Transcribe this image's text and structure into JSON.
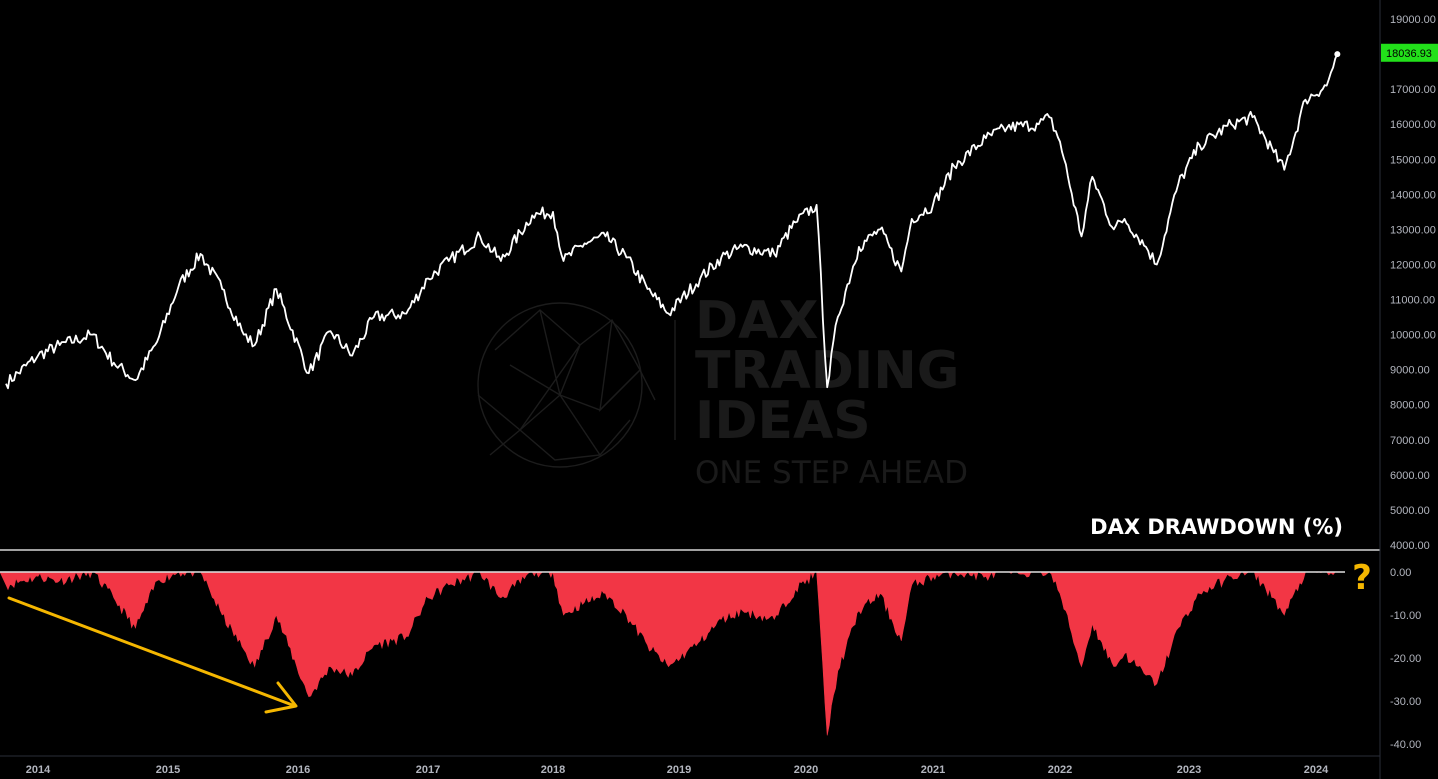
{
  "watermark": {
    "line1": "DAX",
    "line2": "TRADING",
    "line3": "IDEAS",
    "tagline": "ONE STEP AHEAD"
  },
  "drawdown_title": "DAX DRAWDOWN (%)",
  "question_mark": "?",
  "last_price_label": "18036.93",
  "colors": {
    "background": "#000000",
    "price_line": "#ffffff",
    "drawdown_fill": "#f23645",
    "last_price_tag": "#22e01a",
    "annotation": "#f5b700",
    "axis_text": "#b2b5be",
    "pane_separator": "#ffffff"
  },
  "chart_data": [
    {
      "type": "line",
      "name": "DAX",
      "ylim": [
        4000,
        19000
      ],
      "y_ticks": [
        "19000.00",
        "18000.00",
        "17000.00",
        "16000.00",
        "15000.00",
        "14000.00",
        "13000.00",
        "12000.00",
        "11000.00",
        "10000.00",
        "9000.00",
        "8000.00",
        "7000.00",
        "6000.00",
        "5000.00",
        "4000.00"
      ],
      "x_ticks": [
        "2014",
        "2015",
        "2016",
        "2017",
        "2018",
        "2019",
        "2020",
        "2021",
        "2022",
        "2023",
        "2024"
      ],
      "x": [
        "2013-10",
        "2014-01",
        "2014-03",
        "2014-06",
        "2014-08",
        "2014-10",
        "2014-12",
        "2015-02",
        "2015-04",
        "2015-06",
        "2015-08",
        "2015-09",
        "2015-11",
        "2016-02",
        "2016-04",
        "2016-06",
        "2016-08",
        "2016-11",
        "2017-01",
        "2017-03",
        "2017-06",
        "2017-08",
        "2017-11",
        "2018-01",
        "2018-02",
        "2018-04",
        "2018-06",
        "2018-08",
        "2018-10",
        "2018-12",
        "2019-03",
        "2019-05",
        "2019-07",
        "2019-10",
        "2019-12",
        "2020-02",
        "2020-03",
        "2020-04",
        "2020-06",
        "2020-08",
        "2020-10",
        "2020-11",
        "2021-01",
        "2021-03",
        "2021-06",
        "2021-08",
        "2021-11",
        "2021-12",
        "2022-01",
        "2022-03",
        "2022-04",
        "2022-06",
        "2022-07",
        "2022-09",
        "2022-10",
        "2022-12",
        "2023-02",
        "2023-05",
        "2023-07",
        "2023-09",
        "2023-10",
        "2023-12",
        "2024-02",
        "2024-03"
      ],
      "values": [
        8600,
        9400,
        9700,
        10000,
        9200,
        8700,
        9800,
        11400,
        12300,
        11300,
        10000,
        9700,
        11300,
        8900,
        10100,
        9400,
        10500,
        10600,
        11600,
        12100,
        12800,
        12100,
        13400,
        13500,
        12100,
        12600,
        12800,
        12200,
        11300,
        10600,
        11600,
        12200,
        12500,
        12300,
        13200,
        13700,
        8500,
        10500,
        12500,
        13000,
        11800,
        13300,
        13700,
        14800,
        15600,
        15900,
        16000,
        16200,
        15500,
        12800,
        14500,
        13000,
        13300,
        12500,
        12000,
        14300,
        15400,
        16000,
        16200,
        15200,
        14700,
        16700,
        17100,
        18000
      ]
    },
    {
      "type": "area",
      "name": "DAX DRAWDOWN (%)",
      "ylim": [
        -42,
        3
      ],
      "y_ticks": [
        "0.00",
        "-10.00",
        "-20.00",
        "-30.00",
        "-40.00"
      ],
      "x": [
        "2013-10",
        "2014-01",
        "2014-03",
        "2014-06",
        "2014-08",
        "2014-10",
        "2014-12",
        "2015-02",
        "2015-04",
        "2015-06",
        "2015-08",
        "2015-09",
        "2015-11",
        "2016-02",
        "2016-04",
        "2016-06",
        "2016-08",
        "2016-11",
        "2017-01",
        "2017-03",
        "2017-06",
        "2017-08",
        "2017-11",
        "2018-01",
        "2018-02",
        "2018-04",
        "2018-06",
        "2018-08",
        "2018-10",
        "2018-12",
        "2019-03",
        "2019-05",
        "2019-07",
        "2019-10",
        "2019-12",
        "2020-02",
        "2020-03",
        "2020-04",
        "2020-06",
        "2020-08",
        "2020-10",
        "2020-11",
        "2021-01",
        "2021-03",
        "2021-06",
        "2021-08",
        "2021-11",
        "2021-12",
        "2022-01",
        "2022-03",
        "2022-04",
        "2022-06",
        "2022-07",
        "2022-09",
        "2022-10",
        "2022-12",
        "2023-02",
        "2023-05",
        "2023-07",
        "2023-09",
        "2023-10",
        "2023-12",
        "2024-02",
        "2024-03"
      ],
      "values": [
        -3,
        -1,
        -2,
        0,
        -6,
        -13,
        -2,
        0,
        0,
        -10,
        -18,
        -22,
        -10,
        -29,
        -22,
        -24,
        -17,
        -15,
        -6,
        -3,
        0,
        -6,
        0,
        0,
        -10,
        -7,
        -5,
        -10,
        -17,
        -22,
        -16,
        -11,
        -9,
        -11,
        -4,
        0,
        -38,
        -23,
        -9,
        -5,
        -16,
        -3,
        -1,
        0,
        -1,
        0,
        0,
        0,
        -5,
        -22,
        -12,
        -22,
        -19,
        -24,
        -26,
        -13,
        -5,
        -1,
        0,
        -6,
        -10,
        0,
        0,
        0
      ]
    }
  ]
}
